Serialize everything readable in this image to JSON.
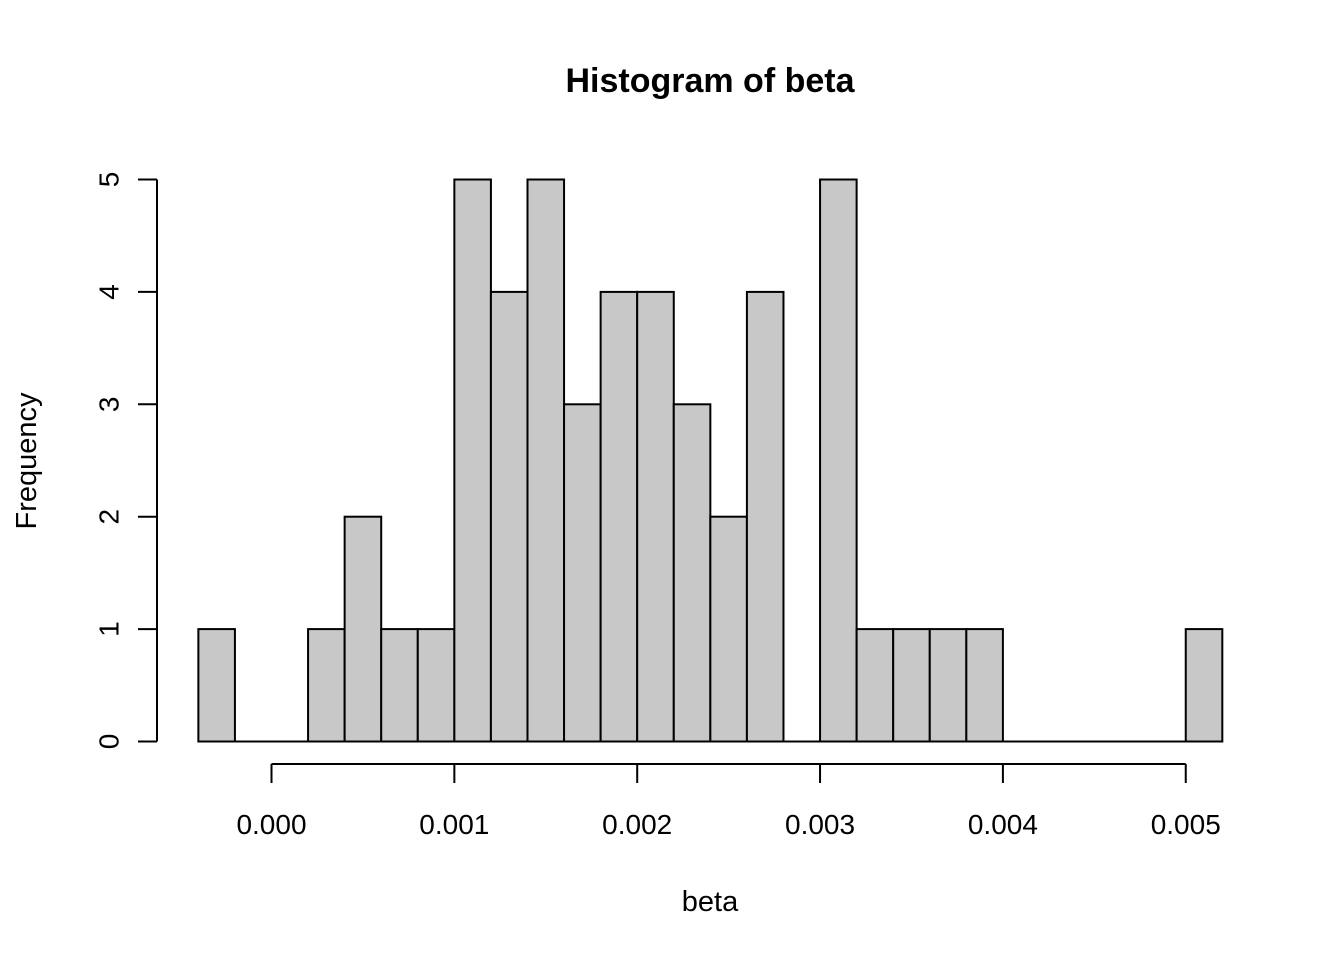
{
  "chart_data": {
    "type": "bar",
    "title": "Histogram of beta",
    "xlabel": "beta",
    "ylabel": "Frequency",
    "bin_width": 0.0002,
    "bins": [
      {
        "start": -0.0004,
        "end": -0.0002,
        "count": 1
      },
      {
        "start": -0.0002,
        "end": 0.0,
        "count": 0
      },
      {
        "start": 0.0,
        "end": 0.0002,
        "count": 0
      },
      {
        "start": 0.0002,
        "end": 0.0004,
        "count": 1
      },
      {
        "start": 0.0004,
        "end": 0.0006,
        "count": 2
      },
      {
        "start": 0.0006,
        "end": 0.0008,
        "count": 1
      },
      {
        "start": 0.0008,
        "end": 0.001,
        "count": 1
      },
      {
        "start": 0.001,
        "end": 0.0012,
        "count": 5
      },
      {
        "start": 0.0012,
        "end": 0.0014,
        "count": 4
      },
      {
        "start": 0.0014,
        "end": 0.0016,
        "count": 5
      },
      {
        "start": 0.0016,
        "end": 0.0018,
        "count": 3
      },
      {
        "start": 0.0018,
        "end": 0.002,
        "count": 4
      },
      {
        "start": 0.002,
        "end": 0.0022,
        "count": 4
      },
      {
        "start": 0.0022,
        "end": 0.0024,
        "count": 3
      },
      {
        "start": 0.0024,
        "end": 0.0026,
        "count": 2
      },
      {
        "start": 0.0026,
        "end": 0.0028,
        "count": 4
      },
      {
        "start": 0.0028,
        "end": 0.003,
        "count": 0
      },
      {
        "start": 0.003,
        "end": 0.0032,
        "count": 5
      },
      {
        "start": 0.0032,
        "end": 0.0034,
        "count": 1
      },
      {
        "start": 0.0034,
        "end": 0.0036,
        "count": 1
      },
      {
        "start": 0.0036,
        "end": 0.0038,
        "count": 1
      },
      {
        "start": 0.0038,
        "end": 0.004,
        "count": 1
      },
      {
        "start": 0.004,
        "end": 0.0042,
        "count": 0
      },
      {
        "start": 0.0042,
        "end": 0.0044,
        "count": 0
      },
      {
        "start": 0.0044,
        "end": 0.0046,
        "count": 0
      },
      {
        "start": 0.0046,
        "end": 0.0048,
        "count": 0
      },
      {
        "start": 0.0048,
        "end": 0.005,
        "count": 0
      },
      {
        "start": 0.005,
        "end": 0.0052,
        "count": 1
      }
    ],
    "xlim": [
      -0.0004,
      0.0052
    ],
    "ylim": [
      0,
      5
    ],
    "x_ticks": [
      0.0,
      0.001,
      0.002,
      0.003,
      0.004,
      0.005
    ],
    "x_tick_labels": [
      "0.000",
      "0.001",
      "0.002",
      "0.003",
      "0.004",
      "0.005"
    ],
    "y_ticks": [
      0,
      1,
      2,
      3,
      4,
      5
    ],
    "y_tick_labels": [
      "0",
      "1",
      "2",
      "3",
      "4",
      "5"
    ],
    "grid": false,
    "bar_color": "#c8c8c8",
    "edge_color": "#000000"
  }
}
